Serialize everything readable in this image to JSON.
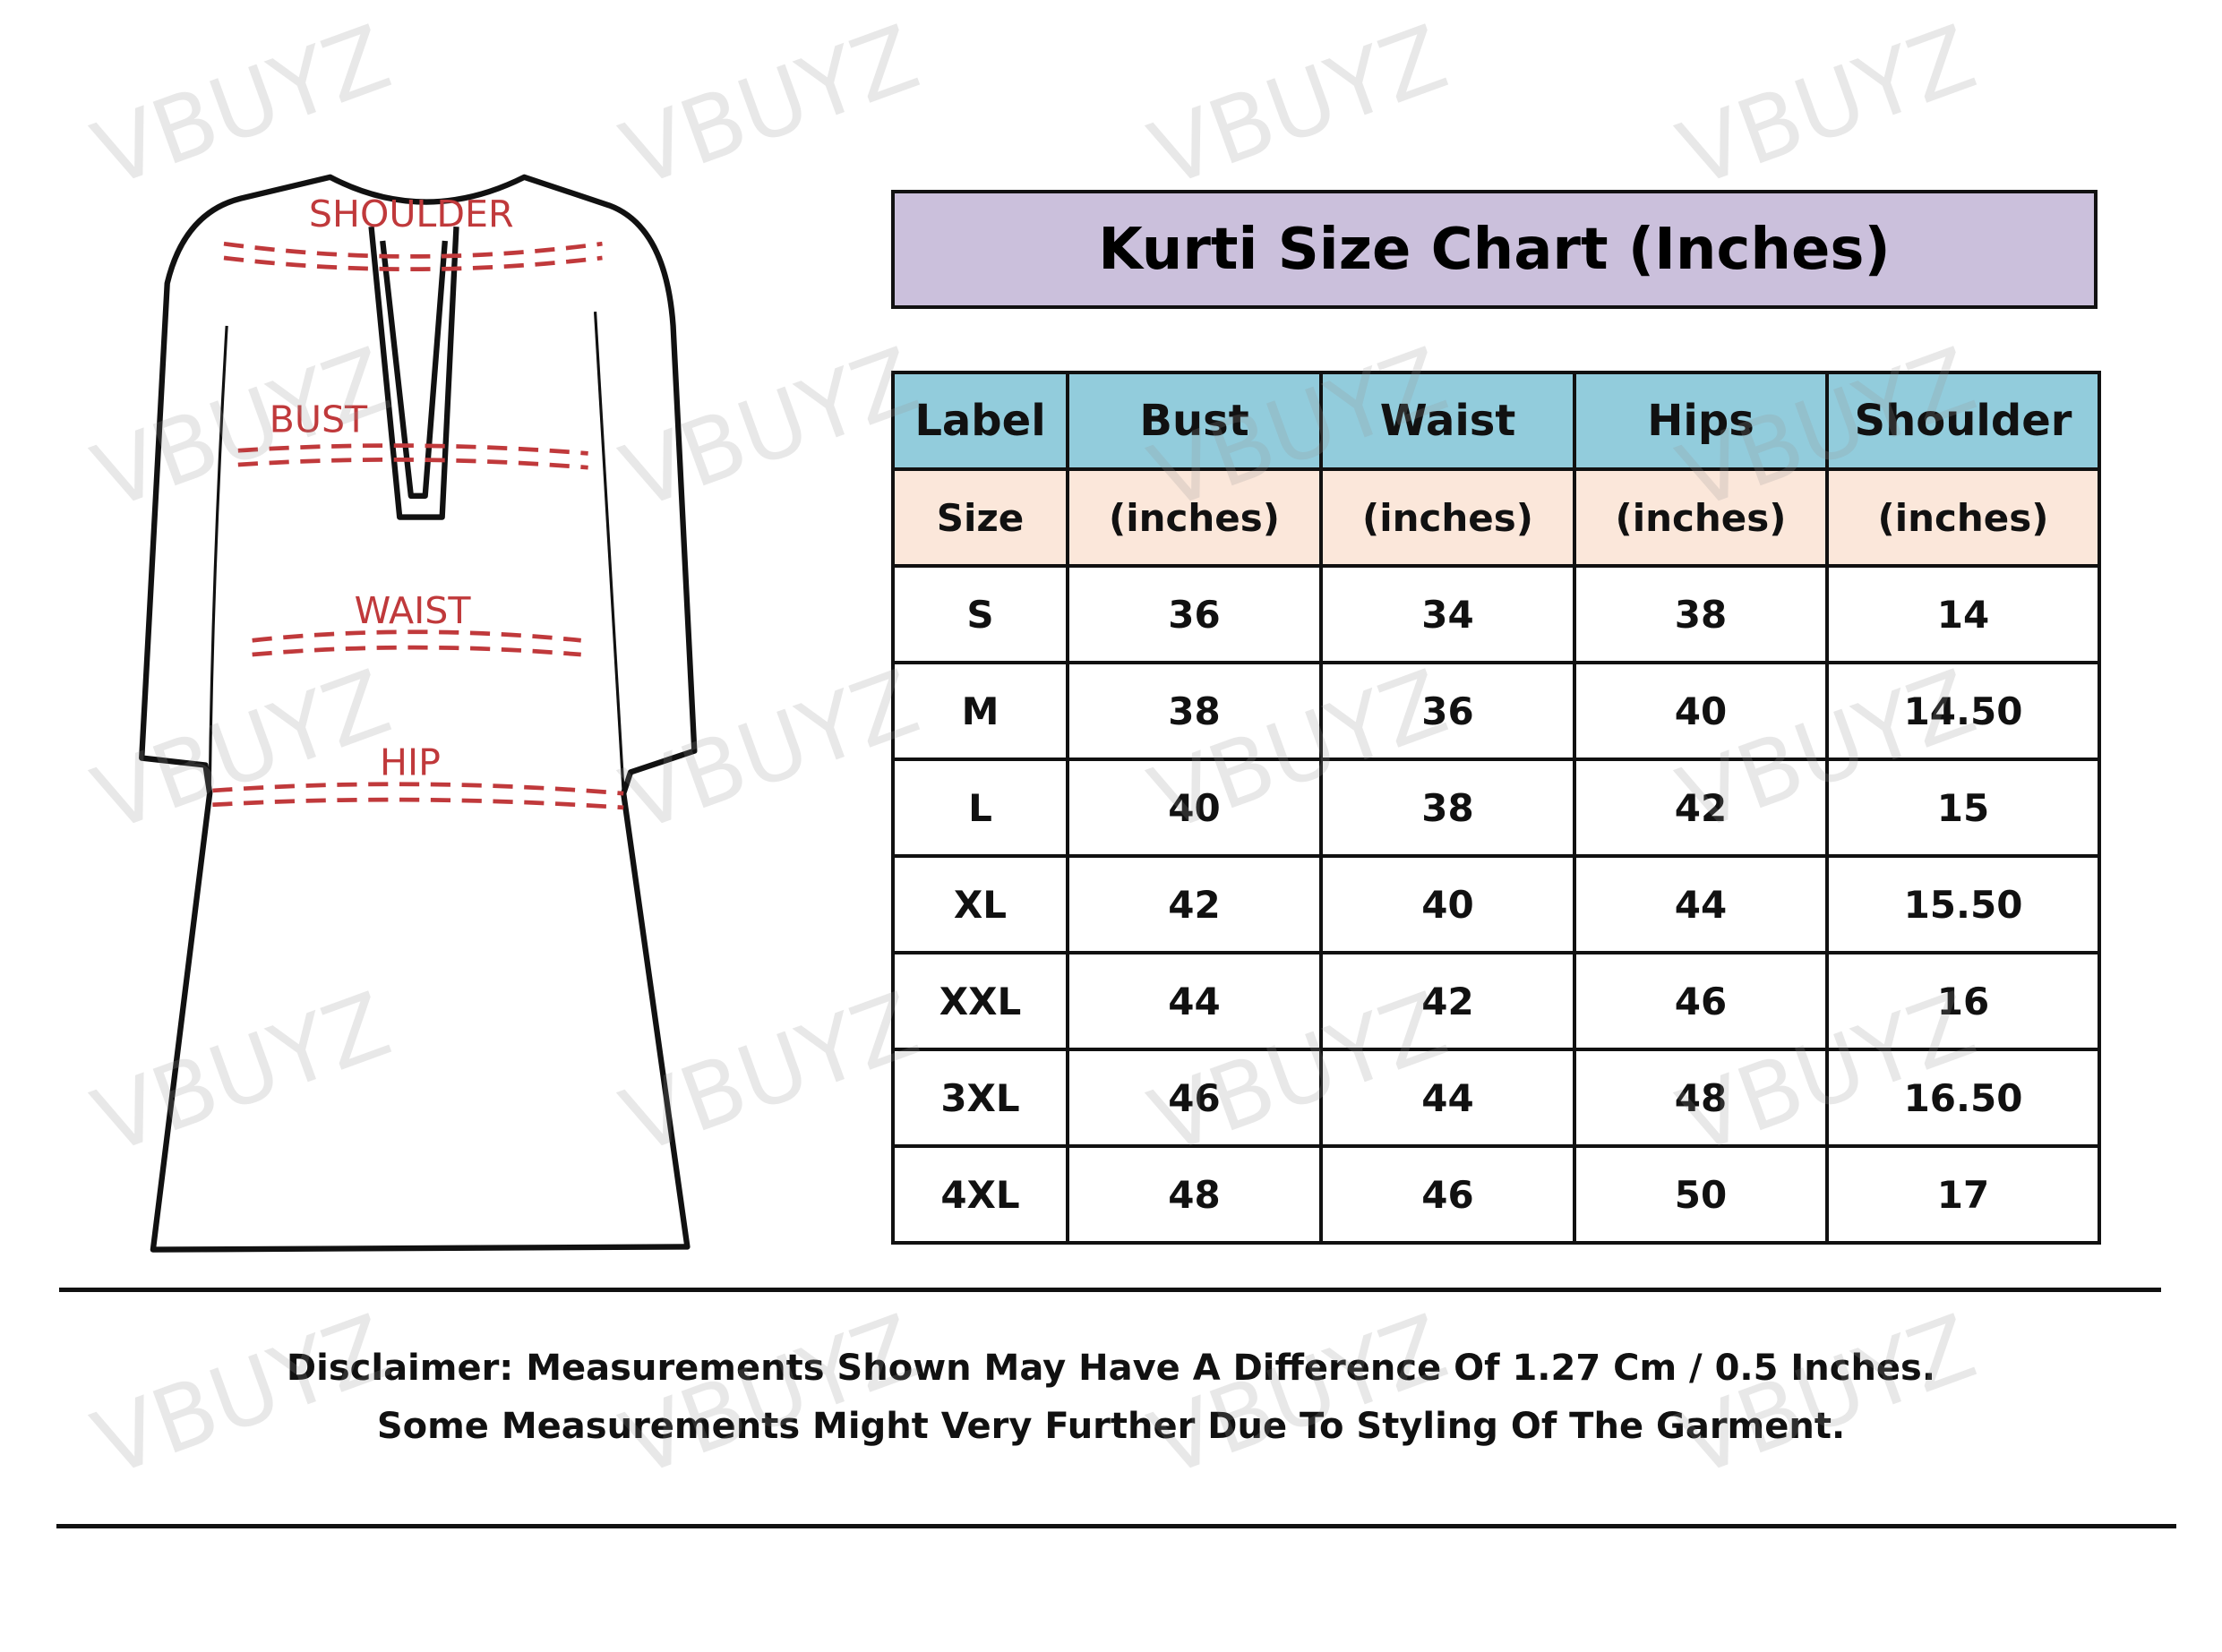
{
  "watermark": "VBUYZ",
  "diagram": {
    "labels": {
      "shoulder": "SHOULDER",
      "bust": "BUST",
      "waist": "WAIST",
      "hip": "HIP"
    },
    "label_color": "#c0393b"
  },
  "title": "Kurti Size Chart (Inches)",
  "colors": {
    "title_bg": "#cbc0dc",
    "header_bg": "#92ccdc",
    "subheader_bg": "#fbe7da"
  },
  "table": {
    "headers": [
      "Label",
      "Bust",
      "Waist",
      "Hips",
      "Shoulder"
    ],
    "subheaders": [
      "Size",
      "(inches)",
      "(inches)",
      "(inches)",
      "(inches)"
    ],
    "rows": [
      [
        "S",
        "36",
        "34",
        "38",
        "14"
      ],
      [
        "M",
        "38",
        "36",
        "40",
        "14.50"
      ],
      [
        "L",
        "40",
        "38",
        "42",
        "15"
      ],
      [
        "XL",
        "42",
        "40",
        "44",
        "15.50"
      ],
      [
        "XXL",
        "44",
        "42",
        "46",
        "16"
      ],
      [
        "3XL",
        "46",
        "44",
        "48",
        "16.50"
      ],
      [
        "4XL",
        "48",
        "46",
        "50",
        "17"
      ]
    ]
  },
  "disclaimer": {
    "line1": "Disclaimer: Measurements Shown May Have A Difference Of 1.27 Cm / 0.5 Inches.",
    "line2": "Some Measurements Might Very Further Due To Styling Of The Garment."
  }
}
